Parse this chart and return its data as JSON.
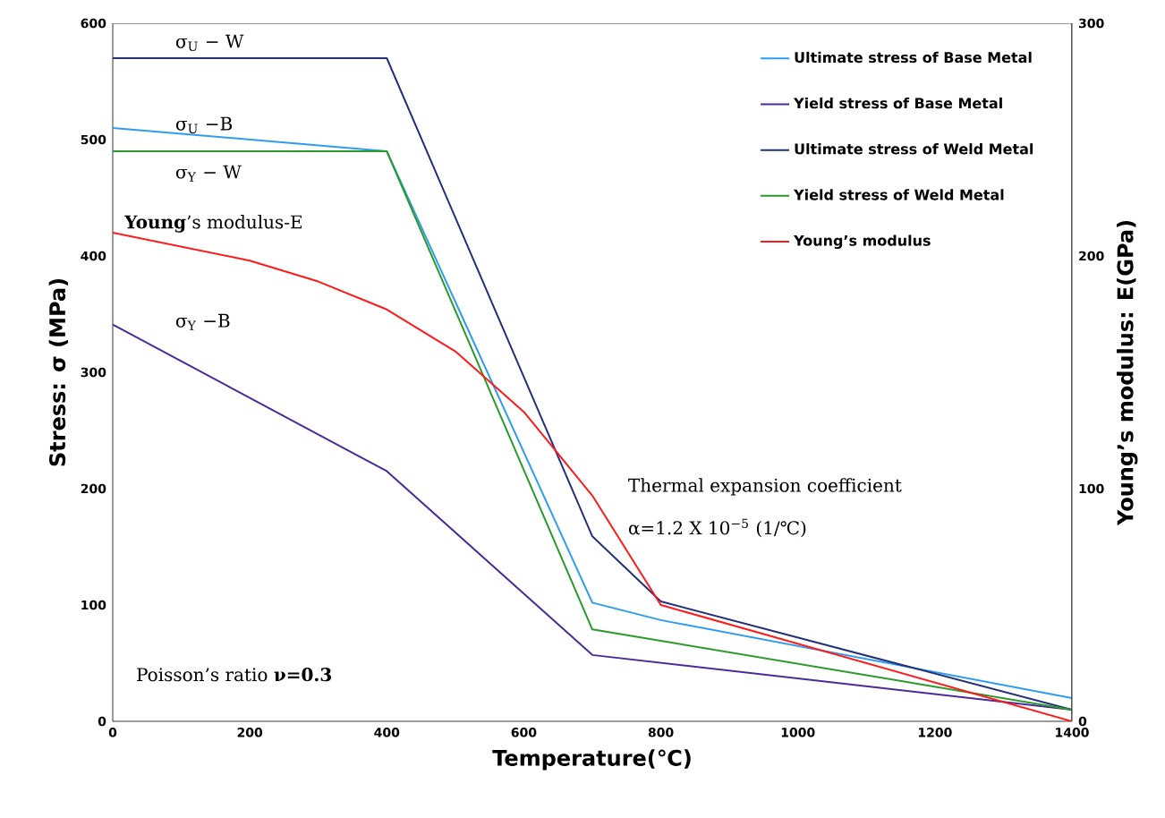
{
  "chart_data": {
    "type": "line",
    "xlabel": "Temperature(℃)",
    "ylabel": "Stress: σ (MPa)",
    "y2label": "Young’s modulus: E(GPa)",
    "series": [
      {
        "name": "Ultimate stress of Base Metal",
        "color": "#2e9cf0",
        "x": [
          0,
          400,
          700,
          800,
          1400
        ],
        "values": [
          510,
          490,
          102,
          87,
          20
        ]
      },
      {
        "name": "Yield stress of Base Metal",
        "color": "#4b2a9a",
        "x": [
          0,
          400,
          700,
          1400
        ],
        "values": [
          341,
          215,
          57,
          10
        ]
      },
      {
        "name": "Ultimate stress of Weld Metal",
        "color": "#25307a",
        "x": [
          0,
          400,
          700,
          800,
          1400
        ],
        "values": [
          570,
          570,
          159,
          103,
          10
        ]
      },
      {
        "name": "Yield stress of Weld Metal",
        "color": "#2a9a2a",
        "x": [
          0,
          400,
          700,
          1400
        ],
        "values": [
          490,
          490,
          79,
          10
        ]
      },
      {
        "name": "Young’s modulus",
        "color": "#ff1a1a",
        "axis": "y2",
        "x": [
          0,
          200,
          300,
          400,
          500,
          600,
          700,
          800,
          1400
        ],
        "values": [
          210,
          198,
          189,
          177,
          159,
          133,
          97,
          50,
          0
        ]
      }
    ],
    "xlim": [
      0,
      1400
    ],
    "xticks": [
      0,
      200,
      400,
      600,
      800,
      1000,
      1200,
      1400
    ],
    "ylim": [
      0,
      600
    ],
    "yticks": [
      0,
      100,
      200,
      300,
      400,
      500,
      600
    ],
    "y2lim": [
      0,
      300
    ],
    "y2ticks": [
      0,
      100,
      200,
      300
    ],
    "legend": "top right",
    "annotations": [
      "σ$_{U}$ − W",
      "σ$_{U}$ −B",
      "σ$_{Y}$ − W",
      "**Young**’s modulus-E",
      "σ$_{Y}$ −B",
      "Thermal expansion coefficient",
      "α=1.2 X 10$^{−5}$ (1/℃)",
      "Poisson’s ratio **ν=0.3**"
    ]
  }
}
